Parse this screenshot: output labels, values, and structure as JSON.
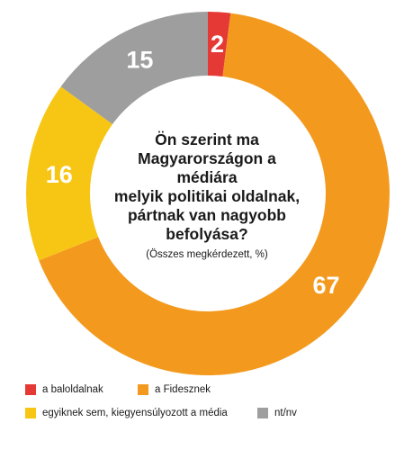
{
  "chart_data": {
    "type": "pie",
    "title": "Ön szerint ma Magyarországon a médiára melyik politikai oldalnak, pártnak van nagyobb befolyása?",
    "title_lines": [
      "Ön szerint ma",
      "Magyarországon a médiára",
      "melyik politikai oldalnak,",
      "pártnak van nagyobb",
      "befolyása?"
    ],
    "subtitle": "(Összes megkérdezett, %)",
    "donut": true,
    "slices": [
      {
        "label": "a baloldalnak",
        "value": 2,
        "color": "#e53935"
      },
      {
        "label": "a Fidesznek",
        "value": 67,
        "color": "#f39a1e"
      },
      {
        "label": "egyiknek sem, kiegyensúlyozott a média",
        "value": 16,
        "color": "#f7c615"
      },
      {
        "label": "nt/nv",
        "value": 15,
        "color": "#9e9e9e"
      }
    ],
    "legend_position": "bottom"
  }
}
